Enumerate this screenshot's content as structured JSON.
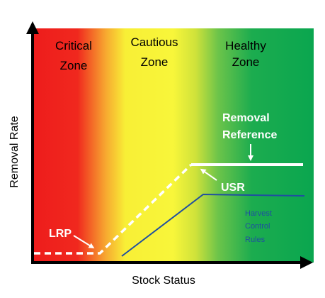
{
  "zones": [
    {
      "line1": "Critical",
      "line2": "Zone"
    },
    {
      "line1": "Cautious",
      "line2": "Zone"
    },
    {
      "line1": "Healthy",
      "line2": "Zone"
    }
  ],
  "axes": {
    "x_label": "Stock Status",
    "y_label": "Removal Rate"
  },
  "annotations": {
    "removal_reference_line1": "Removal",
    "removal_reference_line2": "Reference",
    "usr": "USR",
    "lrp": "LRP",
    "hcr_line1": "Harvest",
    "hcr_line2": "Control",
    "hcr_line3": "Rules"
  },
  "colors": {
    "critical": "#ee1c1c",
    "cautious": "#f8f32a",
    "healthy": "#0aa64f",
    "hcr_line": "#1f4fa0",
    "reference_line": "#ffffff",
    "axis": "#000000"
  }
}
